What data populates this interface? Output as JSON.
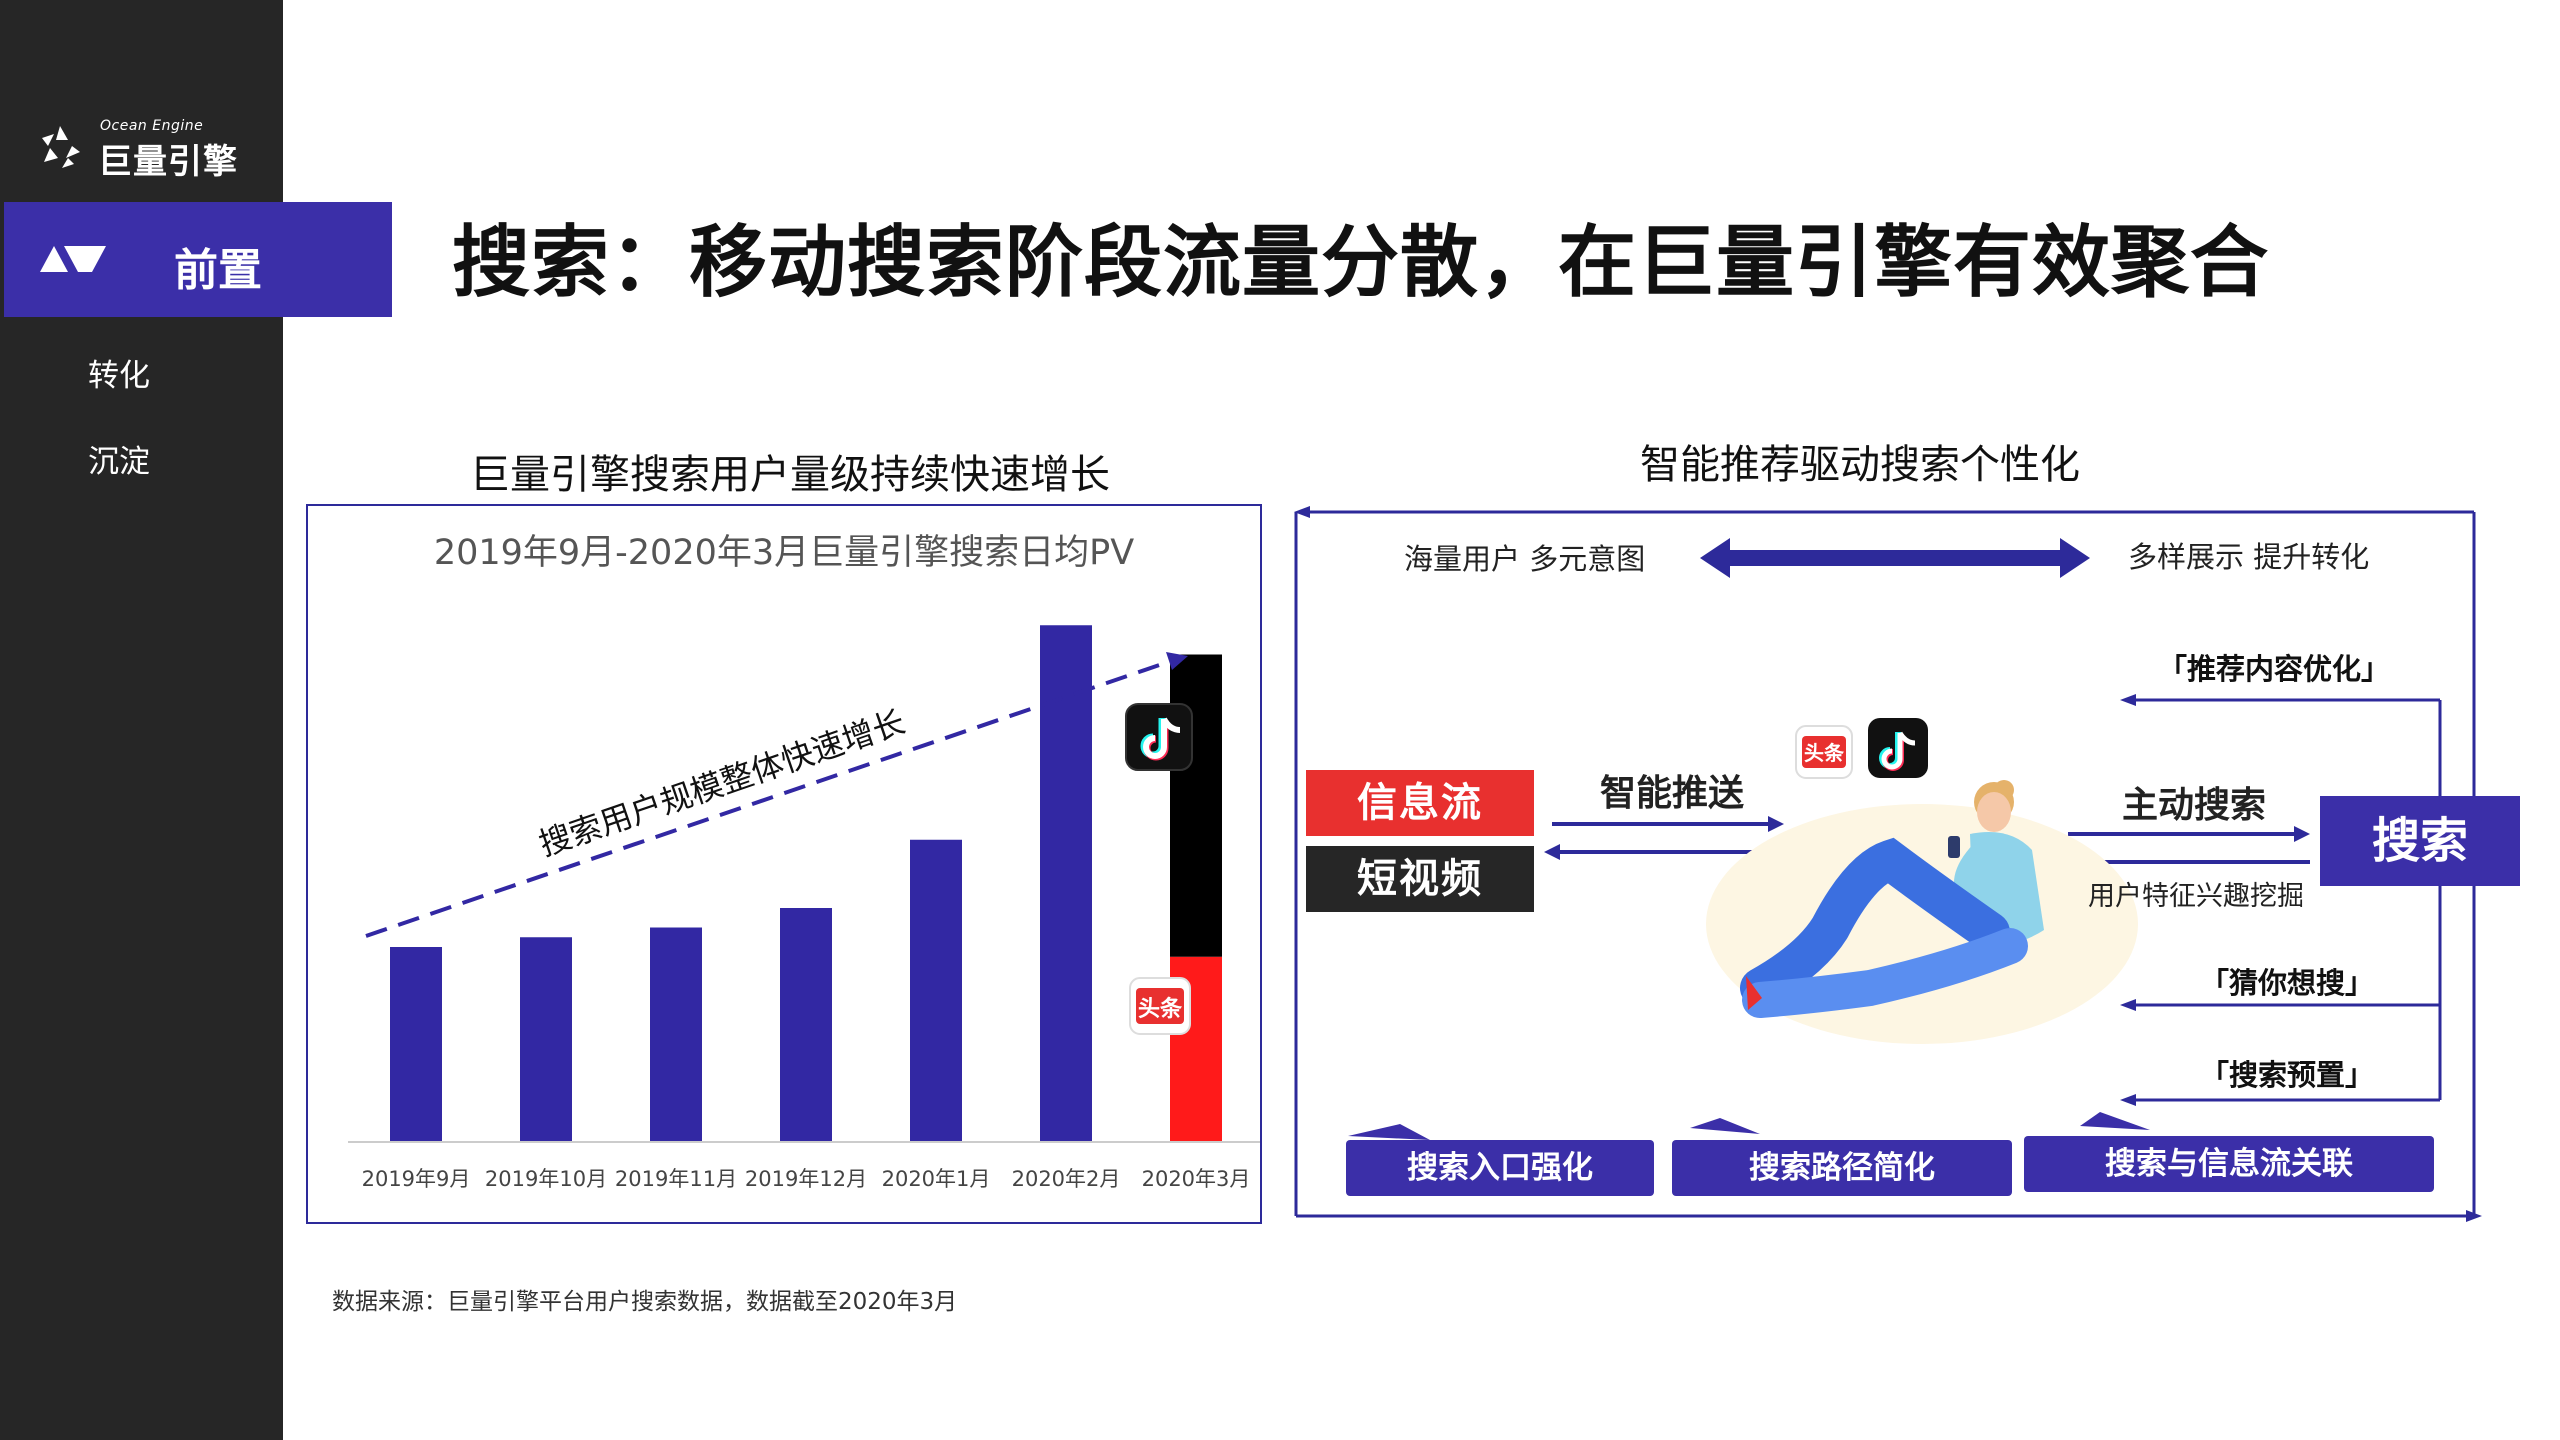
{
  "brand": {
    "en": "Ocean Engine",
    "cn": "巨量引擎"
  },
  "sidebar": {
    "active_item": "前置",
    "items": [
      "转化",
      "沉淀"
    ]
  },
  "title": "搜索：移动搜索阶段流量分散，在巨量引擎有效聚合",
  "left_panel": {
    "heading": "巨量引擎搜索用户量级持续快速增长",
    "trend_label": "搜索用户规模整体快速增长",
    "icon_names": [
      "douyin-icon",
      "toutiao-icon"
    ],
    "toutiao_label": "头条"
  },
  "chart_data": {
    "type": "bar",
    "title": "2019年9月-2020年3月巨量引擎搜索日均PV",
    "categories": [
      "2019年9月",
      "2019年10月",
      "2019年11月",
      "2019年12月",
      "2020年1月",
      "2020年2月",
      "2020年3月"
    ],
    "values": [
      20,
      21,
      22,
      24,
      31,
      53,
      50
    ],
    "last_bar_split": {
      "bottom_red": 19,
      "top_black": 31
    },
    "ylim": [
      0,
      56
    ],
    "xlabel": "",
    "ylabel": "",
    "grid": false,
    "colors": {
      "bar": "#3228a3",
      "red": "#ff1a1a",
      "black": "#000000",
      "trend": "#3228a3"
    }
  },
  "right_panel": {
    "heading": "智能推荐驱动搜索个性化",
    "top_left_label": "海量用户 多元意图",
    "top_right_label": "多样展示 提升转化",
    "feed_tag": "信息流",
    "video_tag": "短视频",
    "push_label": "智能推送",
    "active_search_label": "主动搜索",
    "mining_label": "用户特征兴趣挖掘",
    "search_box": "搜索",
    "bracket_items": [
      "「推荐内容优化」",
      "「猜你想搜」",
      "「搜索预置」"
    ],
    "bottom_buttons": [
      "搜索入口强化",
      "搜索路径简化",
      "搜索与信息流关联"
    ],
    "toutiao_label": "头条"
  },
  "footer": {
    "source": "数据来源：巨量引擎平台用户搜索数据，数据截至2020年3月"
  },
  "colors": {
    "accent": "#3b2fa8",
    "sidebar": "#262626",
    "red": "#e8302f"
  }
}
